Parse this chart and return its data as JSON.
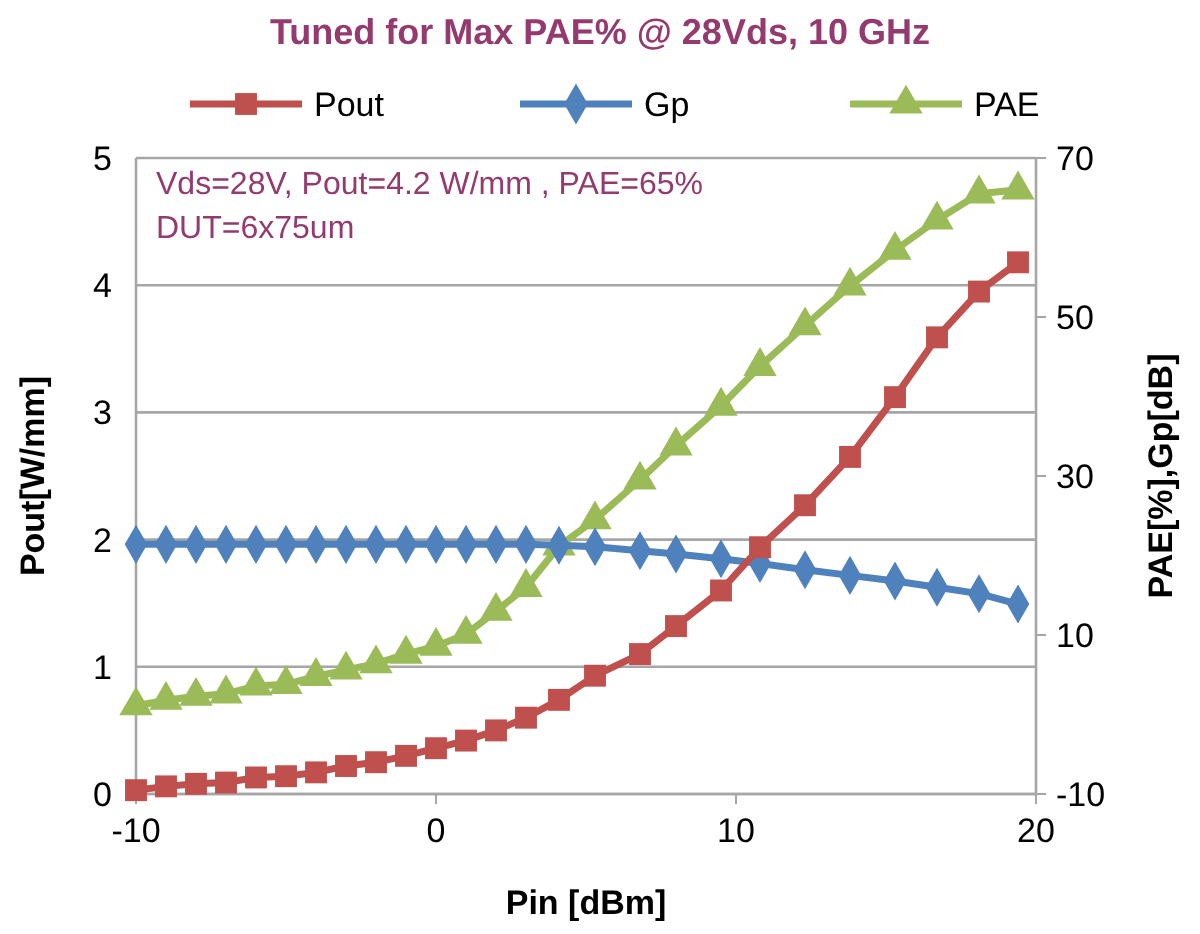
{
  "chart_data": {
    "type": "line",
    "title": "Tuned for Max PAE% @ 28Vds, 10 GHz",
    "xlabel": "Pin [dBm]",
    "ylabel": "Pout[W/mm]",
    "y2label": "PAE[%],Gp[dB]",
    "annotations": [
      "Vds=28V, Pout=4.2 W/mm , PAE=65%",
      "DUT=6x75um"
    ],
    "x": [
      -10,
      -9,
      -8,
      -7,
      -6,
      -5,
      -4,
      -3,
      -2,
      -1,
      0,
      1,
      2,
      3,
      4.1,
      5.3,
      6.8,
      8,
      9.5,
      10.8,
      12.3,
      13.8,
      15.3,
      16.7,
      18.1,
      19.4
    ],
    "series": [
      {
        "name": "Pout",
        "color": "#c0504d",
        "marker": "square",
        "values": [
          0.03,
          0.06,
          0.08,
          0.09,
          0.13,
          0.14,
          0.17,
          0.22,
          0.25,
          0.3,
          0.36,
          0.42,
          0.5,
          0.6,
          0.74,
          0.93,
          1.1,
          1.32,
          1.6,
          1.94,
          2.27,
          2.65,
          3.12,
          3.59,
          3.95,
          4.18
        ]
      },
      {
        "name": "Gp",
        "color": "#4f81bd",
        "marker": "diamond",
        "axis": "y2",
        "values": [
          21.4,
          21.4,
          21.4,
          21.4,
          21.4,
          21.4,
          21.4,
          21.4,
          21.4,
          21.4,
          21.4,
          21.4,
          21.4,
          21.4,
          21.3,
          21.1,
          20.6,
          20.2,
          19.6,
          19,
          18.2,
          17.5,
          16.8,
          16,
          15.2,
          13.9
        ]
      },
      {
        "name": "PAE",
        "color": "#9bbb59",
        "marker": "triangle",
        "axis": "y2",
        "values": [
          1.1,
          1.8,
          2.3,
          2.6,
          3.6,
          3.8,
          4.8,
          5.6,
          6.4,
          7.6,
          8.6,
          10.1,
          13,
          16,
          21.2,
          24.5,
          29.5,
          33.8,
          38.8,
          43.8,
          48.9,
          53.9,
          58.4,
          62.2,
          65.5,
          66
        ]
      }
    ],
    "xlim": [
      -10,
      20
    ],
    "xticks": [
      -10,
      0,
      10,
      20
    ],
    "ylim": [
      0,
      5
    ],
    "yticks": [
      0,
      1,
      2,
      3,
      4,
      5
    ],
    "y2lim": [
      -10,
      70
    ],
    "y2ticks": [
      -10,
      10,
      30,
      50,
      70
    ],
    "grid": "y",
    "legend": "top",
    "line_style": "solid"
  }
}
